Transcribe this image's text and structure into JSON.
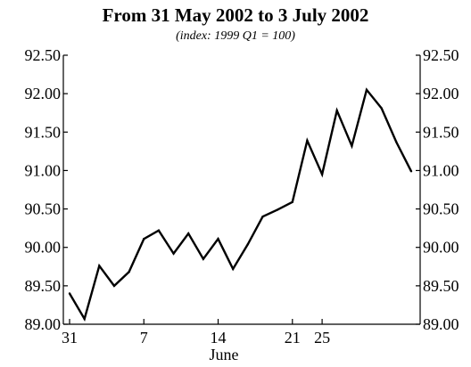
{
  "chart_data": {
    "type": "line",
    "title": "From 31 May 2002 to 3 July 2002",
    "subtitle": "(index: 1999 Q1 = 100)",
    "xlabel": "June",
    "ylabel": "",
    "ylim": [
      89.0,
      92.5
    ],
    "y_ticks": [
      "89.00",
      "89.50",
      "90.00",
      "90.50",
      "91.00",
      "91.50",
      "92.00",
      "92.50"
    ],
    "x_ticks": [
      "31",
      "7",
      "14",
      "21",
      "25"
    ],
    "grid": false,
    "legend": "none",
    "series": [
      {
        "x": [
          "31 May",
          "3 Jun",
          "4 Jun",
          "5 Jun",
          "6 Jun",
          "7 Jun",
          "10 Jun",
          "11 Jun",
          "12 Jun",
          "13 Jun",
          "14 Jun",
          "17 Jun",
          "18 Jun",
          "19 Jun",
          "20 Jun",
          "21 Jun",
          "24 Jun",
          "25 Jun",
          "26 Jun",
          "27 Jun",
          "28 Jun",
          "1 Jul",
          "2 Jul",
          "3 Jul"
        ],
        "values": [
          89.4,
          89.07,
          89.76,
          89.5,
          89.68,
          90.11,
          90.22,
          89.92,
          90.18,
          89.85,
          90.11,
          89.72,
          90.04,
          90.4,
          90.49,
          90.59,
          91.39,
          90.95,
          91.78,
          91.32,
          92.05,
          91.81,
          91.37,
          90.99
        ]
      }
    ],
    "colors": {
      "line": "#000000",
      "background": "#ffffff"
    }
  }
}
